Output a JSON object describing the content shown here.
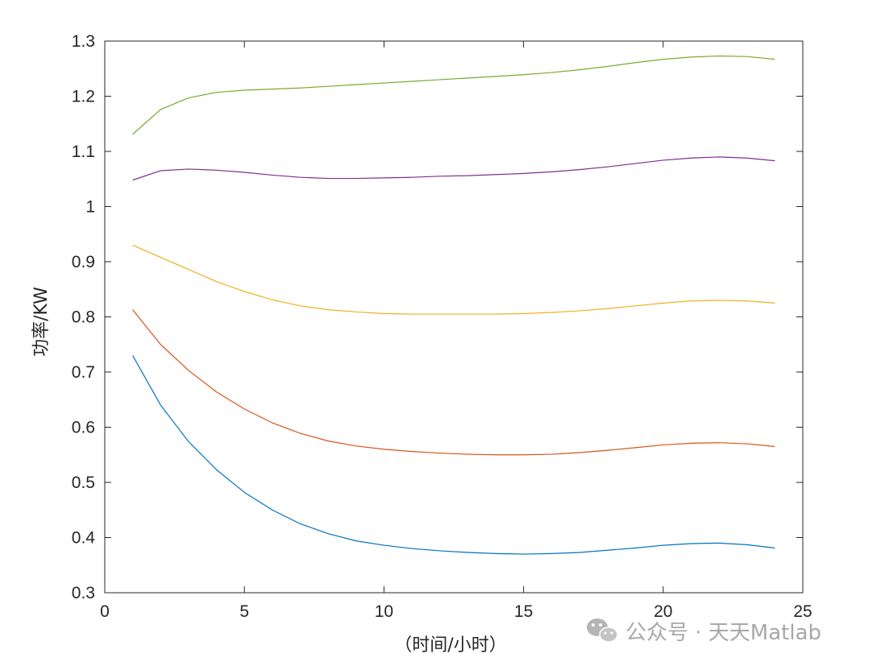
{
  "chart_data": {
    "type": "line",
    "title": "",
    "xlabel": "（时间/小时）",
    "ylabel": "功率/KW",
    "xlim": [
      0,
      25
    ],
    "ylim": [
      0.3,
      1.3
    ],
    "xticks": [
      0,
      5,
      10,
      15,
      20,
      25
    ],
    "xtick_labels": [
      "0",
      "5",
      "10",
      "15",
      "20",
      "25"
    ],
    "yticks": [
      0.3,
      0.4,
      0.5,
      0.6,
      0.7,
      0.8,
      0.9,
      1.0,
      1.1,
      1.2,
      1.3
    ],
    "ytick_labels": [
      "0.3",
      "0.4",
      "0.5",
      "0.6",
      "0.7",
      "0.8",
      "0.9",
      "1",
      "1.1",
      "1.2",
      "1.3"
    ],
    "grid": false,
    "box": true,
    "x": [
      1,
      2,
      3,
      4,
      5,
      6,
      7,
      8,
      9,
      10,
      11,
      12,
      13,
      14,
      15,
      16,
      17,
      18,
      19,
      20,
      21,
      22,
      23,
      24
    ],
    "series": [
      {
        "color": "#0072BD",
        "values": [
          0.73,
          0.64,
          0.574,
          0.523,
          0.482,
          0.45,
          0.425,
          0.407,
          0.394,
          0.386,
          0.38,
          0.376,
          0.373,
          0.371,
          0.37,
          0.371,
          0.373,
          0.377,
          0.381,
          0.386,
          0.389,
          0.39,
          0.387,
          0.381
        ]
      },
      {
        "color": "#D95319",
        "values": [
          0.813,
          0.75,
          0.703,
          0.664,
          0.633,
          0.608,
          0.589,
          0.575,
          0.566,
          0.56,
          0.556,
          0.553,
          0.551,
          0.55,
          0.55,
          0.551,
          0.554,
          0.558,
          0.563,
          0.568,
          0.571,
          0.572,
          0.57,
          0.565
        ]
      },
      {
        "color": "#EDB120",
        "values": [
          0.93,
          0.908,
          0.886,
          0.864,
          0.846,
          0.831,
          0.82,
          0.813,
          0.809,
          0.806,
          0.805,
          0.805,
          0.805,
          0.805,
          0.806,
          0.808,
          0.811,
          0.815,
          0.82,
          0.825,
          0.829,
          0.83,
          0.829,
          0.825
        ]
      },
      {
        "color": "#7E2F8E",
        "values": [
          1.048,
          1.065,
          1.068,
          1.066,
          1.062,
          1.057,
          1.053,
          1.051,
          1.051,
          1.052,
          1.053,
          1.055,
          1.056,
          1.058,
          1.06,
          1.063,
          1.067,
          1.072,
          1.078,
          1.084,
          1.088,
          1.09,
          1.088,
          1.083
        ]
      },
      {
        "color": "#77AC30",
        "values": [
          1.131,
          1.176,
          1.197,
          1.207,
          1.211,
          1.213,
          1.215,
          1.218,
          1.221,
          1.224,
          1.227,
          1.23,
          1.233,
          1.236,
          1.239,
          1.243,
          1.248,
          1.254,
          1.261,
          1.267,
          1.271,
          1.273,
          1.272,
          1.267
        ]
      }
    ]
  },
  "watermark": {
    "text": "公众号 · 天天Matlab",
    "icon": "wechat-icon"
  }
}
